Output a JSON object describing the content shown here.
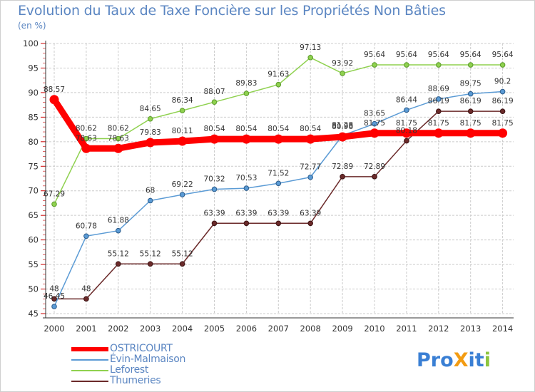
{
  "title": "Evolution du Taux de Taxe Foncière sur les Propriétés Non Bâties",
  "unit_label": "(en %)",
  "logo": {
    "text": "ProXiti",
    "letters": [
      "P",
      "r",
      "o",
      "X",
      "i",
      "t",
      "i"
    ]
  },
  "colors": {
    "OSTRICOURT": "#ff0000",
    "Évin-Malmaison": "#5b9bd5",
    "Leforest": "#8fd14f",
    "Thumeries": "#6b2a2a",
    "grid": "#cccccc",
    "title": "#5b86c2",
    "logo": [
      "#3a7fd4",
      "#3a7fd4",
      "#3a7fd4",
      "#f39c12",
      "#3a7fd4",
      "#3a7fd4",
      "#8dc63f"
    ]
  },
  "chart_data": {
    "type": "line",
    "title": "Evolution du Taux de Taxe Foncière sur les Propriétés Non Bâties",
    "ylabel": "(en %)",
    "xlabel": "",
    "ylim": [
      45,
      100
    ],
    "yticks": [
      "45",
      "50",
      "55",
      "60",
      "65",
      "70",
      "75",
      "80",
      "85",
      "90",
      "95",
      "100"
    ],
    "ytick_values": [
      45,
      50,
      55,
      60,
      65,
      70,
      75,
      80,
      85,
      90,
      95,
      100
    ],
    "categories": [
      "2000",
      "2001",
      "2002",
      "2003",
      "2004",
      "2005",
      "2006",
      "2007",
      "2008",
      "2009",
      "2010",
      "2011",
      "2012",
      "2013",
      "2014"
    ],
    "grid": true,
    "legend_position": "bottom-left",
    "series": [
      {
        "name": "OSTRICOURT",
        "values": [
          88.57,
          78.63,
          78.63,
          79.83,
          80.11,
          80.54,
          80.54,
          80.54,
          80.54,
          80.98,
          81.75,
          81.75,
          81.75,
          81.75,
          81.75
        ],
        "labels": [
          "88.57",
          "78.63",
          "78.63",
          "79.83",
          "80.11",
          "80.54",
          "80.54",
          "80.54",
          "80.54",
          "80.98",
          "81.75",
          "81.75",
          "81.75",
          "81.75",
          "81.75"
        ]
      },
      {
        "name": "Évin-Malmaison",
        "values": [
          46.45,
          60.78,
          61.88,
          68,
          69.22,
          70.32,
          70.53,
          71.52,
          72.77,
          81.28,
          83.65,
          86.44,
          88.69,
          89.75,
          90.2
        ],
        "labels": [
          "46.45",
          "60.78",
          "61.88",
          "68",
          "69.22",
          "70.32",
          "70.53",
          "71.52",
          "72.77",
          "81.28",
          "83.65",
          "86.44",
          "88.69",
          "89.75",
          "90.2"
        ]
      },
      {
        "name": "Leforest",
        "values": [
          67.29,
          80.62,
          80.62,
          84.65,
          86.34,
          88.07,
          89.83,
          91.63,
          97.13,
          93.92,
          95.64,
          95.64,
          95.64,
          95.64,
          95.64
        ],
        "labels": [
          "67.29",
          "80.62",
          "80.62",
          "84.65",
          "86.34",
          "88.07",
          "89.83",
          "91.63",
          "97.13",
          "93.92",
          "95.64",
          "95.64",
          "95.64",
          "95.64",
          "95.64"
        ]
      },
      {
        "name": "Thumeries",
        "values": [
          48,
          48,
          55.12,
          55.12,
          55.12,
          63.39,
          63.39,
          63.39,
          63.39,
          72.89,
          72.89,
          80.18,
          86.19,
          86.19,
          86.19
        ],
        "labels": [
          "48",
          "48",
          "55.12",
          "55.12",
          "55.12",
          "63.39",
          "63.39",
          "63.39",
          "63.39",
          "72.89",
          "72.89",
          "80.18",
          "86.19",
          "86.19",
          "86.19"
        ]
      }
    ],
    "legend": [
      "OSTRICOURT",
      "Évin-Malmaison",
      "Leforest",
      "Thumeries"
    ]
  }
}
